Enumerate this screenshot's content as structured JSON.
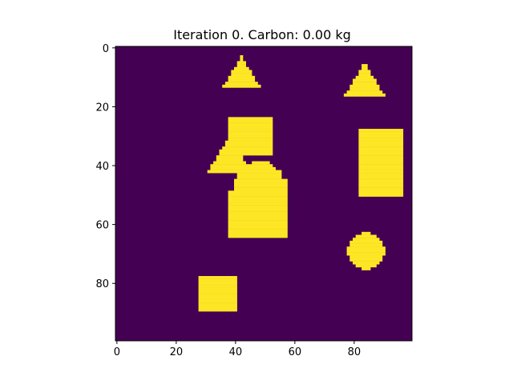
{
  "chart_data": {
    "type": "heatmap",
    "title": "Iteration 0. Carbon: 0.00 kg",
    "grid_size": [
      100,
      100
    ],
    "xlim": [
      -0.5,
      99.5
    ],
    "ylim": [
      99.5,
      -0.5
    ],
    "y_axis": "inverted (row 0 at top)",
    "x_ticks": [
      "0",
      "20",
      "40",
      "60",
      "80"
    ],
    "y_ticks": [
      "0",
      "20",
      "40",
      "60",
      "80"
    ],
    "colormap": "viridis",
    "values_range": [
      0,
      1
    ],
    "colors": {
      "background": "#440154",
      "foreground": "#fde725"
    },
    "grid": false,
    "shapes": [
      {
        "kind": "triangle",
        "rows": [
          3,
          13
        ],
        "center_col": 42
      },
      {
        "kind": "triangle",
        "rows": [
          6,
          16
        ],
        "center_col": 83.5
      },
      {
        "kind": "rectangle",
        "rows": [
          24,
          36
        ],
        "cols": [
          38,
          52
        ]
      },
      {
        "kind": "triangle",
        "rows": [
          30,
          42
        ],
        "center_col": 38
      },
      {
        "kind": "rectangle",
        "rows": [
          28,
          50
        ],
        "cols": [
          82,
          96
        ]
      },
      {
        "kind": "blob",
        "rows": [
          39,
          64
        ],
        "cols": [
          38,
          57
        ]
      },
      {
        "kind": "circle",
        "center": [
          69,
          84
        ],
        "radius": 6.3
      },
      {
        "kind": "rectangle",
        "rows": [
          78,
          89
        ],
        "cols": [
          28,
          40
        ]
      }
    ]
  }
}
